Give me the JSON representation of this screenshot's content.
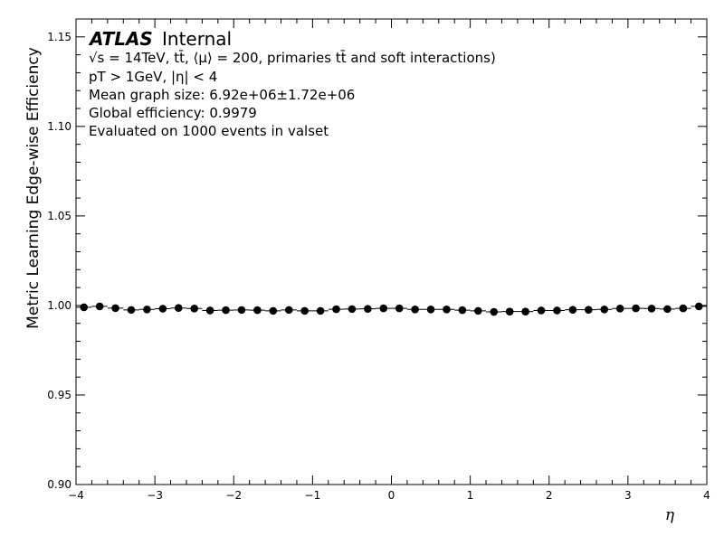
{
  "header": {
    "atlas": "ATLAS",
    "status": "Internal",
    "line1": "√s = 14TeV, tt̄, ⟨μ⟩ = 200, primaries tt̄ and soft interactions)",
    "line2": "pT > 1GeV, |η| < 4",
    "line3": "Mean graph size: 6.92e+06±1.72e+06",
    "line4": "Global efficiency: 0.9979",
    "line5": "Evaluated on 1000 events in valset"
  },
  "chart_data": {
    "type": "scatter",
    "title": "",
    "xlabel": "η",
    "ylabel": "Metric Learning Edge-wise Efficiency",
    "xlim": [
      -4,
      4
    ],
    "ylim": [
      0.9,
      1.16
    ],
    "xticks": [
      -4,
      -3,
      -2,
      -1,
      0,
      1,
      2,
      3,
      4
    ],
    "xtick_labels": [
      "−4",
      "−3",
      "−2",
      "−1",
      "0",
      "1",
      "2",
      "3",
      "4"
    ],
    "yticks": [
      0.9,
      0.95,
      1.0,
      1.05,
      1.1,
      1.15
    ],
    "ytick_labels": [
      "0.90",
      "0.95",
      "1.00",
      "1.05",
      "1.10",
      "1.15"
    ],
    "marker_color": "#000000",
    "series": [
      {
        "x": [
          -3.9,
          -3.7,
          -3.5,
          -3.3,
          -3.1,
          -2.9,
          -2.7,
          -2.5,
          -2.3,
          -2.1,
          -1.9,
          -1.7,
          -1.5,
          -1.3,
          -1.1,
          -0.9,
          -0.7,
          -0.5,
          -0.3,
          -0.1,
          0.1,
          0.3,
          0.5,
          0.7,
          0.9,
          1.1,
          1.3,
          1.5,
          1.7,
          1.9,
          2.1,
          2.3,
          2.5,
          2.7,
          2.9,
          3.1,
          3.3,
          3.5,
          3.7,
          3.9
        ],
        "y": [
          0.999,
          0.9995,
          0.9985,
          0.9975,
          0.9978,
          0.9982,
          0.9986,
          0.9983,
          0.9972,
          0.9974,
          0.9975,
          0.9974,
          0.997,
          0.9975,
          0.997,
          0.997,
          0.9979,
          0.998,
          0.9981,
          0.9984,
          0.9984,
          0.9978,
          0.9978,
          0.9978,
          0.9974,
          0.997,
          0.9964,
          0.9966,
          0.9966,
          0.9972,
          0.9972,
          0.9976,
          0.9976,
          0.9978,
          0.9983,
          0.9984,
          0.9983,
          0.998,
          0.9984,
          0.9995
        ]
      }
    ]
  }
}
